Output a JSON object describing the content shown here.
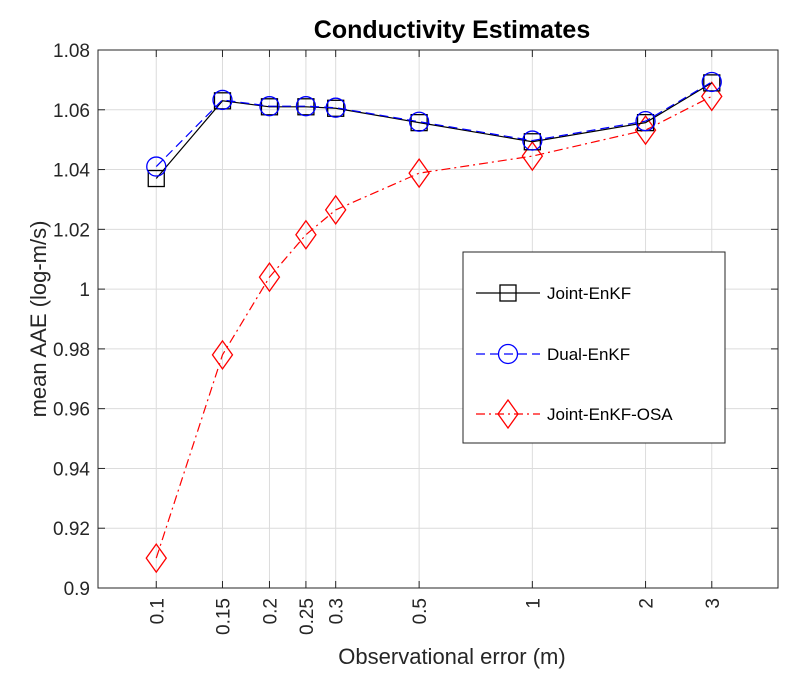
{
  "chart_data": {
    "type": "line",
    "title": "Conductivity Estimates",
    "xlabel": "Observational error (m)",
    "ylabel": "mean AAE (log-m/s)",
    "x_scale": "log",
    "xlim": [
      0.07,
      4.5
    ],
    "ylim": [
      0.9,
      1.08
    ],
    "x_ticks": [
      0.1,
      0.15,
      0.2,
      0.25,
      0.3,
      0.5,
      1,
      2,
      3
    ],
    "x_tick_labels": [
      "0.1",
      "0.15",
      "0.2",
      "0.25",
      "0.3",
      "0.5",
      "1",
      "2",
      "3"
    ],
    "y_ticks": [
      0.9,
      0.92,
      0.94,
      0.96,
      0.98,
      1.0,
      1.02,
      1.04,
      1.06,
      1.08
    ],
    "y_tick_labels": [
      "0.9",
      "0.92",
      "0.94",
      "0.96",
      "0.98",
      "1",
      "1.02",
      "1.04",
      "1.06",
      "1.08"
    ],
    "grid": true,
    "legend_position": "center-right",
    "x": [
      0.1,
      0.15,
      0.2,
      0.25,
      0.3,
      0.5,
      1,
      2,
      3
    ],
    "series": [
      {
        "name": "Joint-EnKF",
        "values": [
          1.037,
          1.063,
          1.061,
          1.061,
          1.0605,
          1.0557,
          1.0493,
          1.0557,
          1.069
        ],
        "color": "#000000",
        "line_style": "solid",
        "marker": "square"
      },
      {
        "name": "Dual-EnKF",
        "values": [
          1.041,
          1.0633,
          1.0612,
          1.0612,
          1.0607,
          1.056,
          1.0497,
          1.0562,
          1.0693
        ],
        "color": "#0000ff",
        "line_style": "dashed",
        "marker": "circle"
      },
      {
        "name": "Joint-EnKF-OSA",
        "values": [
          0.91,
          0.978,
          1.004,
          1.0182,
          1.0265,
          1.0388,
          1.0445,
          1.0532,
          1.0645
        ],
        "color": "#ff0000",
        "line_style": "dashdot",
        "marker": "diamond"
      }
    ]
  }
}
